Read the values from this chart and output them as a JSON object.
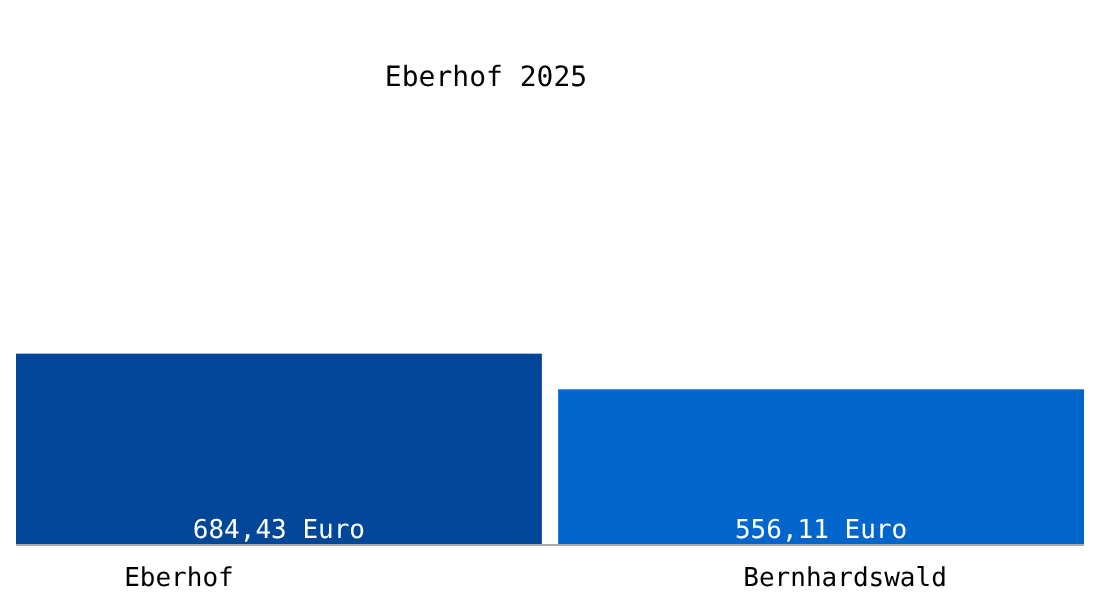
{
  "chart_data": {
    "type": "bar",
    "title": "Eberhof 2025",
    "categories": [
      "Eberhof",
      "Bernhardswald"
    ],
    "values": [
      684.43,
      556.11
    ],
    "colors": [
      "#00479a",
      "#0066cc"
    ],
    "value_labels": [
      "684,43 Euro",
      "556,11 Euro"
    ]
  }
}
